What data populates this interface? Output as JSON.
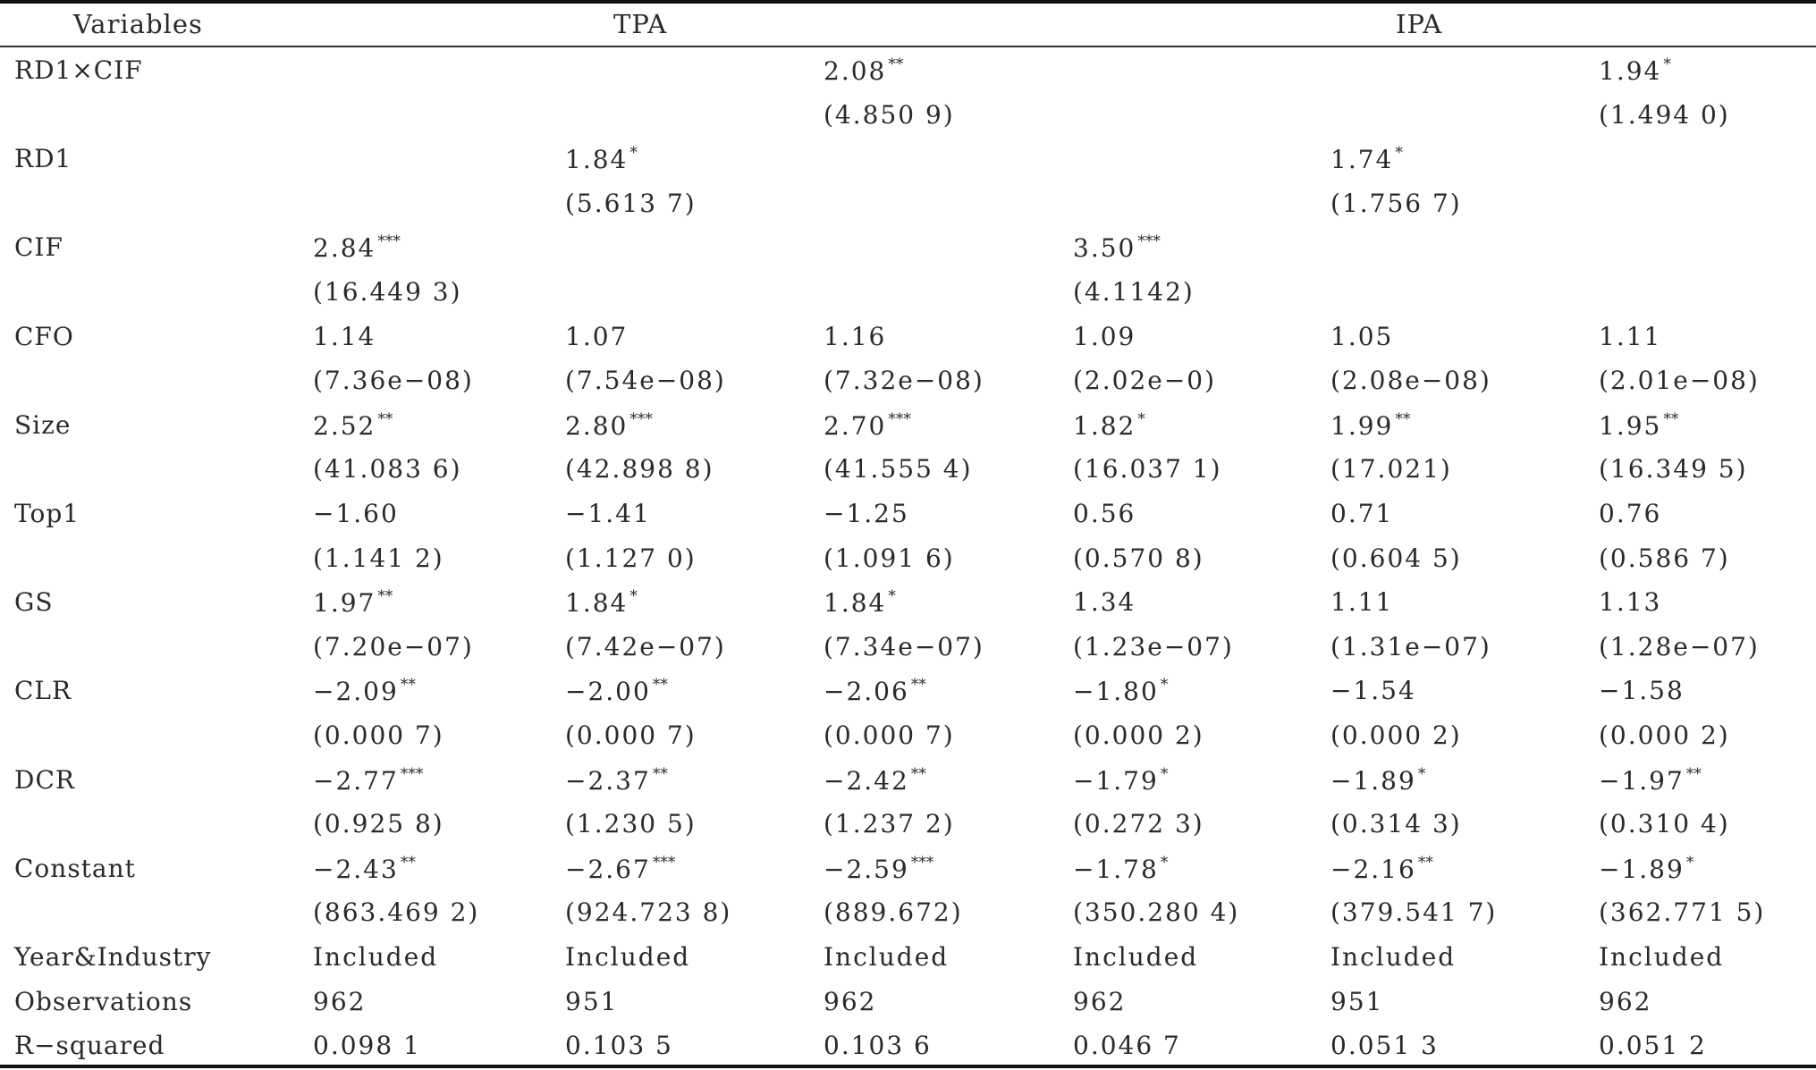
{
  "header": {
    "variables": "Variables",
    "group_tpa": "TPA",
    "group_ipa": "IPA"
  },
  "rows": [
    {
      "label": "RD1×CIF",
      "coef": [
        {
          "v": "",
          "s": ""
        },
        {
          "v": "",
          "s": ""
        },
        {
          "v": "2.08",
          "s": "**"
        },
        {
          "v": "",
          "s": ""
        },
        {
          "v": "",
          "s": ""
        },
        {
          "v": "1.94",
          "s": "*"
        }
      ],
      "se": [
        "",
        "",
        "(4.850 9)",
        "",
        "",
        "(1.494 0)"
      ]
    },
    {
      "label": "RD1",
      "coef": [
        {
          "v": "",
          "s": ""
        },
        {
          "v": "1.84",
          "s": "*"
        },
        {
          "v": "",
          "s": ""
        },
        {
          "v": "",
          "s": ""
        },
        {
          "v": "1.74",
          "s": "*"
        },
        {
          "v": "",
          "s": ""
        }
      ],
      "se": [
        "",
        "(5.613 7)",
        "",
        "",
        "(1.756 7)",
        ""
      ]
    },
    {
      "label": "CIF",
      "coef": [
        {
          "v": "2.84",
          "s": "***"
        },
        {
          "v": "",
          "s": ""
        },
        {
          "v": "",
          "s": ""
        },
        {
          "v": "3.50",
          "s": "***"
        },
        {
          "v": "",
          "s": ""
        },
        {
          "v": "",
          "s": ""
        }
      ],
      "se": [
        "(16.449 3)",
        "",
        "",
        "(4.1142)",
        "",
        ""
      ]
    },
    {
      "label": "CFO",
      "coef": [
        {
          "v": "1.14",
          "s": ""
        },
        {
          "v": "1.07",
          "s": ""
        },
        {
          "v": "1.16",
          "s": ""
        },
        {
          "v": "1.09",
          "s": ""
        },
        {
          "v": "1.05",
          "s": ""
        },
        {
          "v": "1.11",
          "s": ""
        }
      ],
      "se": [
        "(7.36e−08)",
        "(7.54e−08)",
        "(7.32e−08)",
        "(2.02e−0)",
        "(2.08e−08)",
        "(2.01e−08)"
      ]
    },
    {
      "label": "Size",
      "coef": [
        {
          "v": "2.52",
          "s": "**"
        },
        {
          "v": "2.80",
          "s": "***"
        },
        {
          "v": "2.70",
          "s": "***"
        },
        {
          "v": "1.82",
          "s": "*"
        },
        {
          "v": "1.99",
          "s": "**"
        },
        {
          "v": "1.95",
          "s": "**"
        }
      ],
      "se": [
        "(41.083 6)",
        "(42.898 8)",
        "(41.555 4)",
        "(16.037 1)",
        "(17.021)",
        "(16.349 5)"
      ]
    },
    {
      "label": "Top1",
      "coef": [
        {
          "v": "−1.60",
          "s": ""
        },
        {
          "v": "−1.41",
          "s": ""
        },
        {
          "v": "−1.25",
          "s": ""
        },
        {
          "v": "0.56",
          "s": ""
        },
        {
          "v": "0.71",
          "s": ""
        },
        {
          "v": "0.76",
          "s": ""
        }
      ],
      "se": [
        "(1.141 2)",
        "(1.127 0)",
        "(1.091 6)",
        "(0.570 8)",
        "(0.604 5)",
        "(0.586 7)"
      ]
    },
    {
      "label": "GS",
      "coef": [
        {
          "v": "1.97",
          "s": "**"
        },
        {
          "v": "1.84",
          "s": "*"
        },
        {
          "v": "1.84",
          "s": "*"
        },
        {
          "v": "1.34",
          "s": ""
        },
        {
          "v": "1.11",
          "s": ""
        },
        {
          "v": "1.13",
          "s": ""
        }
      ],
      "se": [
        "(7.20e−07)",
        "(7.42e−07)",
        "(7.34e−07)",
        "(1.23e−07)",
        "(1.31e−07)",
        "(1.28e−07)"
      ]
    },
    {
      "label": "CLR",
      "coef": [
        {
          "v": "−2.09",
          "s": "**"
        },
        {
          "v": "−2.00",
          "s": "**"
        },
        {
          "v": "−2.06",
          "s": "**"
        },
        {
          "v": "−1.80",
          "s": "*"
        },
        {
          "v": "−1.54",
          "s": ""
        },
        {
          "v": "−1.58",
          "s": ""
        }
      ],
      "se": [
        "(0.000 7)",
        "(0.000 7)",
        "(0.000 7)",
        "(0.000 2)",
        "(0.000 2)",
        "(0.000 2)"
      ]
    },
    {
      "label": "DCR",
      "coef": [
        {
          "v": "−2.77",
          "s": "***"
        },
        {
          "v": "−2.37",
          "s": "**"
        },
        {
          "v": "−2.42",
          "s": "**"
        },
        {
          "v": "−1.79",
          "s": "*"
        },
        {
          "v": "−1.89",
          "s": "*"
        },
        {
          "v": "−1.97",
          "s": "**"
        }
      ],
      "se": [
        "(0.925 8)",
        "(1.230 5)",
        "(1.237 2)",
        "(0.272 3)",
        "(0.314 3)",
        "(0.310 4)"
      ]
    },
    {
      "label": "Constant",
      "coef": [
        {
          "v": "−2.43",
          "s": "**"
        },
        {
          "v": "−2.67",
          "s": "***"
        },
        {
          "v": "−2.59",
          "s": "***"
        },
        {
          "v": "−1.78",
          "s": "*"
        },
        {
          "v": "−2.16",
          "s": "**"
        },
        {
          "v": "−1.89",
          "s": "*"
        }
      ],
      "se": [
        "(863.469 2)",
        "(924.723 8)",
        "(889.672)",
        "(350.280 4)",
        "(379.541 7)",
        "(362.771 5)"
      ]
    }
  ],
  "footer_rows": [
    {
      "label": "Year&Industry",
      "values": [
        "Included",
        "Included",
        "Included",
        "Included",
        "Included",
        "Included"
      ]
    },
    {
      "label": "Observations",
      "values": [
        "962",
        "951",
        "962",
        "962",
        "951",
        "962"
      ]
    },
    {
      "label": "R−squared",
      "values": [
        "0.098 1",
        "0.103 5",
        "0.103 6",
        "0.046 7",
        "0.051 3",
        "0.051 2"
      ]
    }
  ]
}
